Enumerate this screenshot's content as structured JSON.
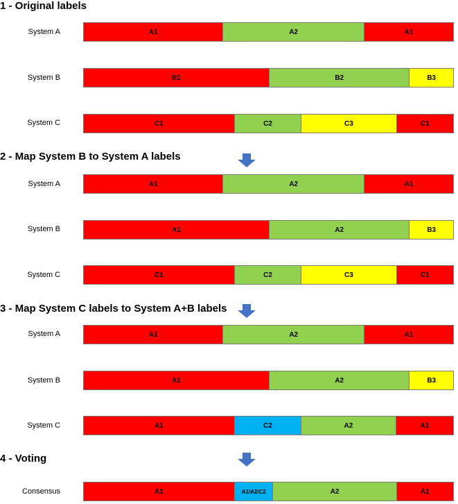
{
  "colors": {
    "A1": "#ff0000",
    "C1": "#ff0000",
    "B1": "#ff0000",
    "A2": "#92d050",
    "B2": "#92d050",
    "C2_green": "#92d050",
    "B3": "#ffff00",
    "C3": "#ffff00",
    "C2_blue": "#00b0f0",
    "arrow": "#4472c4"
  },
  "sections": [
    {
      "title": "1 - Original labels",
      "rows": [
        {
          "label": "System A",
          "segments": [
            {
              "text": "A1",
              "flex": 202,
              "color": "#ff0000"
            },
            {
              "text": "A2",
              "flex": 204,
              "color": "#92d050"
            },
            {
              "text": "A1",
              "flex": 129,
              "color": "#ff0000"
            }
          ]
        },
        {
          "label": "System B",
          "segments": [
            {
              "text": "B1",
              "flex": 269,
              "color": "#ff0000"
            },
            {
              "text": "B2",
              "flex": 203,
              "color": "#92d050"
            },
            {
              "text": "B3",
              "flex": 63,
              "color": "#ffff00"
            }
          ]
        },
        {
          "label": "System C",
          "segments": [
            {
              "text": "C1",
              "flex": 219,
              "color": "#ff0000"
            },
            {
              "text": "C2",
              "flex": 96,
              "color": "#92d050"
            },
            {
              "text": "C3",
              "flex": 138,
              "color": "#ffff00"
            },
            {
              "text": "C1",
              "flex": 82,
              "color": "#ff0000"
            }
          ]
        }
      ]
    },
    {
      "title": "2 - Map System B to System A labels",
      "rows": [
        {
          "label": "System A",
          "segments": [
            {
              "text": "A1",
              "flex": 202,
              "color": "#ff0000"
            },
            {
              "text": "A2",
              "flex": 204,
              "color": "#92d050"
            },
            {
              "text": "A1",
              "flex": 129,
              "color": "#ff0000"
            }
          ]
        },
        {
          "label": "System B",
          "segments": [
            {
              "text": "A1",
              "flex": 269,
              "color": "#ff0000"
            },
            {
              "text": "A2",
              "flex": 203,
              "color": "#92d050"
            },
            {
              "text": "B3",
              "flex": 63,
              "color": "#ffff00"
            }
          ]
        },
        {
          "label": "System C",
          "segments": [
            {
              "text": "C1",
              "flex": 219,
              "color": "#ff0000"
            },
            {
              "text": "C2",
              "flex": 96,
              "color": "#92d050"
            },
            {
              "text": "C3",
              "flex": 138,
              "color": "#ffff00"
            },
            {
              "text": "C1",
              "flex": 82,
              "color": "#ff0000"
            }
          ]
        }
      ]
    },
    {
      "title": "3 - Map System C labels to System A+B labels",
      "rows": [
        {
          "label": "System A",
          "segments": [
            {
              "text": "A1",
              "flex": 202,
              "color": "#ff0000"
            },
            {
              "text": "A2",
              "flex": 204,
              "color": "#92d050"
            },
            {
              "text": "A1",
              "flex": 129,
              "color": "#ff0000"
            }
          ]
        },
        {
          "label": "System B",
          "segments": [
            {
              "text": "A1",
              "flex": 269,
              "color": "#ff0000"
            },
            {
              "text": "A2",
              "flex": 203,
              "color": "#92d050"
            },
            {
              "text": "B3",
              "flex": 63,
              "color": "#ffff00"
            }
          ]
        },
        {
          "label": "System C",
          "segments": [
            {
              "text": "A1",
              "flex": 219,
              "color": "#ff0000"
            },
            {
              "text": "C2",
              "flex": 96,
              "color": "#00b0f0"
            },
            {
              "text": "A2",
              "flex": 137,
              "color": "#92d050"
            },
            {
              "text": "A1",
              "flex": 83,
              "color": "#ff0000"
            }
          ]
        }
      ]
    },
    {
      "title": "4 - Voting",
      "rows": [
        {
          "label": "Consensus",
          "segments": [
            {
              "text": "A1",
              "flex": 219,
              "color": "#ff0000"
            },
            {
              "text": "A1/A2/C2",
              "flex": 55,
              "color": "#00b0f0"
            },
            {
              "text": "A2",
              "flex": 179,
              "color": "#92d050"
            },
            {
              "text": "A1",
              "flex": 82,
              "color": "#ff0000"
            }
          ]
        }
      ]
    }
  ]
}
